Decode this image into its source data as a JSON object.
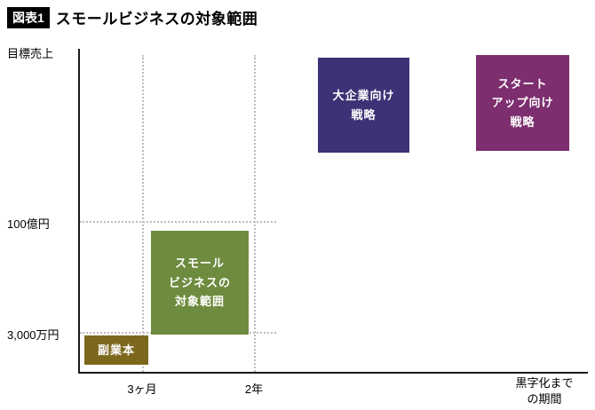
{
  "header": {
    "badge": "図表1",
    "title": "スモールビジネスの対象範囲"
  },
  "axes": {
    "y_label": "目標売上",
    "x_label": "黒字化まで\nの期間",
    "y_ticks": [
      "100億円",
      "3,000万円"
    ],
    "x_ticks": [
      "3ヶ月",
      "2年"
    ]
  },
  "boxes": {
    "enterprise": {
      "label": "大企業向け\n戦略",
      "color": "#3e3175"
    },
    "startup": {
      "label": "スタート\nアップ向け\n戦略",
      "color": "#7d2e6f"
    },
    "small_business": {
      "label": "スモール\nビジネスの\n対象範囲",
      "color": "#6e8c3f"
    },
    "side_job": {
      "label": "副業本",
      "color": "#7d671d"
    }
  },
  "colors": {
    "axis": "#1a1a1a",
    "gridline": "#bdbdbd",
    "badge_background": "#000000",
    "box_text": "#ffffff"
  },
  "chart_data": {
    "type": "area",
    "title": "スモールビジネスの対象範囲",
    "xlabel": "黒字化までの期間",
    "ylabel": "目標売上",
    "x_ticks": [
      "3ヶ月",
      "2年"
    ],
    "y_ticks": [
      "3,000万円",
      "100億円"
    ],
    "grid": "dotted guide lines at each tick",
    "legend": "none",
    "regions": [
      {
        "name": "副業本",
        "x_range": "0〜3ヶ月",
        "y_range": "〜3,000万円",
        "color": "#7d671d"
      },
      {
        "name": "スモールビジネスの対象範囲",
        "x_range": "3ヶ月〜2年",
        "y_range": "3,000万円〜100億円",
        "color": "#6e8c3f"
      },
      {
        "name": "大企業向け戦略",
        "x_range": "2年超",
        "y_range": "100億円超",
        "color": "#3e3175"
      },
      {
        "name": "スタートアップ向け戦略",
        "x_range": "2年超（さらに長期）",
        "y_range": "100億円超",
        "color": "#7d2e6f"
      }
    ]
  }
}
